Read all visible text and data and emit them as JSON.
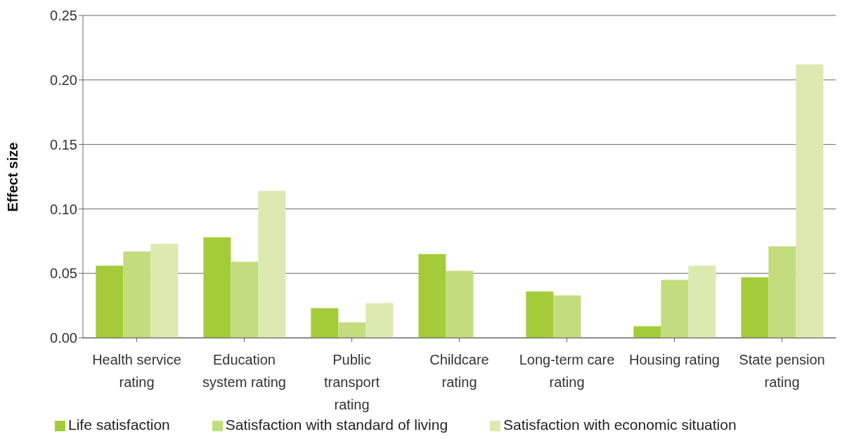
{
  "chart_data": {
    "type": "bar",
    "ylabel": "Effect size",
    "categories": [
      "Health service rating",
      "Education system rating",
      "Public transport rating",
      "Childcare rating",
      "Long-term care rating",
      "Housing rating",
      "State pension rating"
    ],
    "series": [
      {
        "name": "Life satisfaction",
        "color": "#a4cc3a",
        "values": [
          0.056,
          0.078,
          0.023,
          0.065,
          0.036,
          0.009,
          0.047
        ]
      },
      {
        "name": "Satisfaction with standard of living",
        "color": "#c3dc7e",
        "values": [
          0.067,
          0.059,
          0.012,
          0.052,
          0.033,
          0.045,
          0.071
        ]
      },
      {
        "name": "Satisfaction with economic situation",
        "color": "#dce9b0",
        "values": [
          0.073,
          0.114,
          0.027,
          null,
          null,
          0.056,
          0.212
        ]
      }
    ],
    "ylim": [
      0,
      0.25
    ],
    "yticks": [
      {
        "value": 0,
        "label": "0.00"
      },
      {
        "value": 0.05,
        "label": "0.05"
      },
      {
        "value": 0.1,
        "label": "0.10"
      },
      {
        "value": 0.15,
        "label": "0.15"
      },
      {
        "value": 0.2,
        "label": "0.20"
      },
      {
        "value": 0.25,
        "label": "0.25"
      }
    ],
    "grid": "y",
    "legend": "bottom left"
  }
}
